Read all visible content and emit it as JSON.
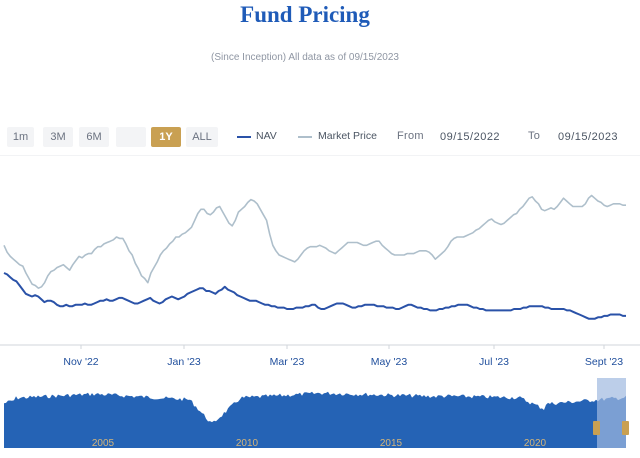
{
  "page": {
    "title": "Fund Pricing",
    "subtitle": "(Since Inception) All data as of 09/15/2023"
  },
  "ranges": [
    {
      "label": "1m",
      "active": false
    },
    {
      "label": "3M",
      "active": false
    },
    {
      "label": "6M",
      "active": false
    },
    {
      "label": "",
      "active": false
    },
    {
      "label": "1Y",
      "active": true
    },
    {
      "label": "ALL",
      "active": false
    }
  ],
  "legend": {
    "nav_label": "NAV",
    "market_price_label": "Market Price",
    "nav_color": "#2a52a8",
    "market_price_color": "#aebfcb"
  },
  "date_range": {
    "from_label": "From",
    "from_value": "09/15/2022",
    "to_label": "To",
    "to_value": "09/15/2023"
  },
  "chart_data": {
    "type": "line",
    "x_tick_labels": [
      "Nov '22",
      "Jan '23",
      "Mar '23",
      "May '23",
      "Jul '23",
      "Sept '23"
    ],
    "series": [
      {
        "name": "NAV",
        "values": [
          112,
          111,
          109,
          107,
          106,
          103,
          100,
          97,
          96,
          95,
          96,
          95,
          93,
          91,
          92,
          92,
          91,
          89,
          88,
          88,
          89,
          88,
          88,
          89,
          89,
          89,
          90,
          89,
          89,
          90,
          91,
          92,
          92,
          93,
          92,
          92,
          93,
          94,
          94,
          93,
          92,
          91,
          90,
          90,
          91,
          92,
          93,
          94,
          92,
          91,
          90,
          91,
          93,
          94,
          95,
          94,
          93,
          94,
          95,
          97,
          98,
          99,
          100,
          101,
          101,
          99,
          99,
          98,
          97,
          99,
          100,
          102,
          100,
          99,
          98,
          96,
          95,
          94,
          93,
          92,
          92,
          92,
          91,
          90,
          89,
          89,
          88,
          88,
          87,
          87,
          87,
          86,
          86,
          86,
          87,
          87,
          87,
          88,
          88,
          89,
          89,
          87,
          86,
          86,
          87,
          88,
          89,
          90,
          90,
          90,
          89,
          88,
          87,
          87,
          88,
          88,
          89,
          89,
          89,
          89,
          88,
          88,
          88,
          87,
          87,
          87,
          86,
          86,
          87,
          88,
          89,
          89,
          88,
          87,
          87,
          86,
          86,
          85,
          85,
          85,
          86,
          86,
          87,
          87,
          88,
          88,
          89,
          89,
          89,
          89,
          88,
          87,
          87,
          86,
          86,
          85,
          85,
          85,
          85,
          85,
          85,
          85,
          85,
          85,
          86,
          86,
          86,
          87,
          87,
          88,
          88,
          88,
          88,
          88,
          87,
          87,
          86,
          86,
          86,
          86,
          86,
          85,
          85,
          84,
          83,
          82,
          81,
          80,
          79,
          79,
          79,
          80,
          80,
          81,
          81,
          82,
          82,
          82,
          82,
          81,
          81
        ]
      },
      {
        "name": "Market Price",
        "values": [
          132,
          127,
          124,
          122,
          120,
          118,
          117,
          112,
          108,
          104,
          103,
          101,
          102,
          105,
          110,
          113,
          114,
          116,
          117,
          118,
          116,
          114,
          118,
          121,
          124,
          123,
          125,
          126,
          126,
          129,
          131,
          131,
          133,
          134,
          135,
          136,
          138,
          137,
          137,
          133,
          128,
          125,
          119,
          115,
          110,
          108,
          105,
          112,
          116,
          120,
          125,
          128,
          130,
          133,
          135,
          138,
          138,
          140,
          141,
          143,
          145,
          150,
          155,
          158,
          158,
          155,
          154,
          156,
          159,
          160,
          156,
          152,
          148,
          146,
          150,
          156,
          158,
          160,
          163,
          165,
          164,
          162,
          158,
          154,
          150,
          140,
          132,
          128,
          125,
          124,
          123,
          122,
          121,
          120,
          122,
          125,
          128,
          130,
          131,
          131,
          131,
          132,
          131,
          130,
          128,
          127,
          126,
          128,
          130,
          132,
          134,
          134,
          134,
          134,
          133,
          132,
          132,
          133,
          134,
          135,
          135,
          132,
          130,
          128,
          126,
          125,
          125,
          125,
          125,
          126,
          126,
          126,
          127,
          128,
          128,
          128,
          127,
          125,
          122,
          124,
          126,
          128,
          131,
          135,
          137,
          138,
          138,
          138,
          139,
          140,
          141,
          143,
          144,
          146,
          148,
          150,
          151,
          149,
          148,
          147,
          148,
          150,
          152,
          154,
          155,
          158,
          160,
          163,
          166,
          167,
          164,
          162,
          158,
          157,
          158,
          159,
          158,
          160,
          163,
          166,
          164,
          162,
          160,
          160,
          160,
          160,
          162,
          166,
          168,
          166,
          164,
          163,
          161,
          160,
          161,
          162,
          162,
          162,
          161,
          161
        ]
      }
    ],
    "navigator": {
      "tick_labels": [
        "2005",
        "2010",
        "2015",
        "2020"
      ]
    }
  }
}
